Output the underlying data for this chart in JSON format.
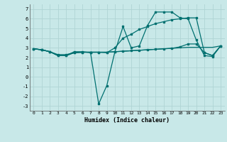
{
  "xlabel": "Humidex (Indice chaleur)",
  "background_color": "#c8e8e8",
  "grid_color": "#b0d4d4",
  "line_color": "#007070",
  "xlim": [
    -0.5,
    23.5
  ],
  "ylim": [
    -3.5,
    7.5
  ],
  "xticks": [
    0,
    1,
    2,
    3,
    4,
    5,
    6,
    7,
    8,
    9,
    10,
    11,
    12,
    13,
    14,
    15,
    16,
    17,
    18,
    19,
    20,
    21,
    22,
    23
  ],
  "yticks": [
    -3,
    -2,
    -1,
    0,
    1,
    2,
    3,
    4,
    5,
    6,
    7
  ],
  "line1": [
    2.9,
    2.8,
    2.6,
    2.2,
    2.2,
    2.6,
    2.6,
    2.5,
    -2.8,
    -0.9,
    2.6,
    5.2,
    3.0,
    3.2,
    5.3,
    6.7,
    6.7,
    6.7,
    6.1,
    6.0,
    3.8,
    2.2,
    2.1,
    3.2
  ],
  "line2": [
    2.9,
    2.8,
    2.6,
    2.2,
    2.2,
    2.5,
    2.55,
    2.55,
    2.55,
    2.55,
    2.6,
    2.65,
    2.7,
    2.75,
    2.8,
    2.85,
    2.9,
    2.95,
    3.0,
    3.05,
    3.05,
    3.05,
    3.05,
    3.2
  ],
  "line3": [
    2.9,
    2.8,
    2.6,
    2.3,
    2.3,
    2.5,
    2.55,
    2.55,
    2.55,
    2.5,
    3.0,
    4.0,
    4.4,
    4.9,
    5.2,
    5.5,
    5.7,
    5.9,
    6.0,
    6.1,
    6.1,
    2.5,
    2.2,
    3.2
  ],
  "line4": [
    2.9,
    2.8,
    2.6,
    2.2,
    2.2,
    2.5,
    2.55,
    2.55,
    2.55,
    2.55,
    2.6,
    2.65,
    2.7,
    2.75,
    2.8,
    2.85,
    2.9,
    2.95,
    3.1,
    3.4,
    3.4,
    2.5,
    2.2,
    3.2
  ]
}
